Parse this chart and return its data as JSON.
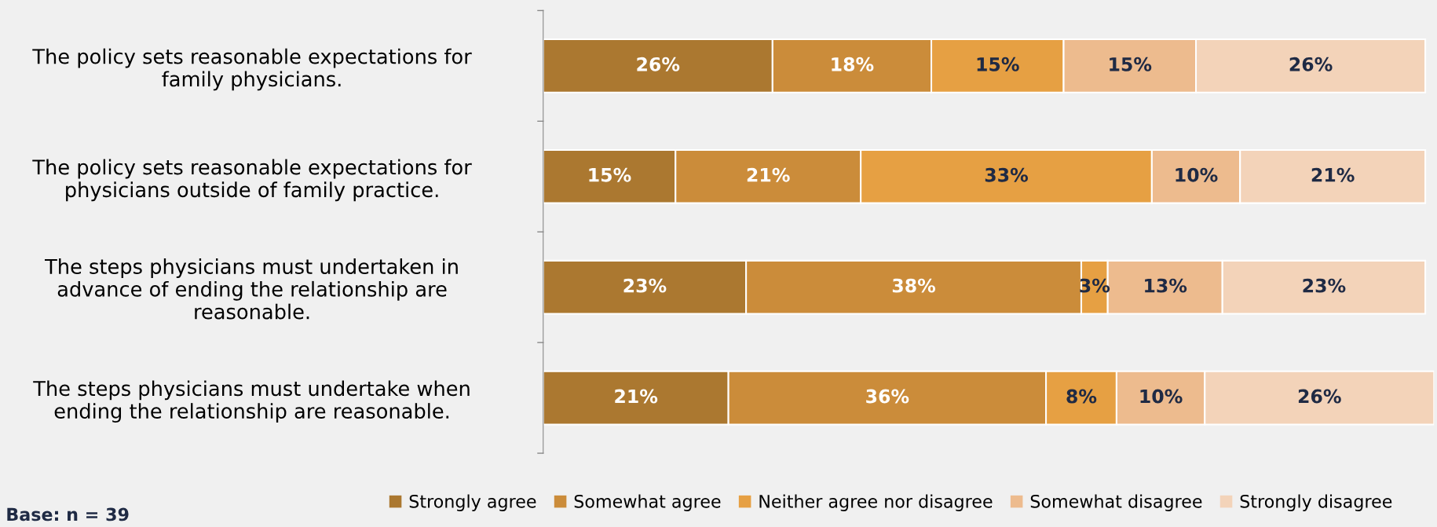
{
  "chart_data": {
    "type": "bar",
    "orientation": "horizontal",
    "stacked": true,
    "categories": [
      "The policy sets reasonable expectations for family physicians.",
      "The policy sets reasonable expectations for physicians outside of family practice.",
      "The steps physicians must undertaken in advance of ending the relationship are reasonable.",
      "The steps physicians must undertake when ending the relationship are reasonable."
    ],
    "series": [
      {
        "name": "Strongly agree",
        "color": "#ab7830",
        "values": [
          26,
          15,
          23,
          21
        ],
        "value_labels": [
          "26%",
          "15%",
          "23%",
          "21%"
        ]
      },
      {
        "name": "Somewhat agree",
        "color": "#cb8c3a",
        "values": [
          18,
          21,
          38,
          36
        ],
        "value_labels": [
          "18%",
          "21%",
          "38%",
          "36%"
        ]
      },
      {
        "name": "Neither agree nor disagree",
        "color": "#e6a043",
        "values": [
          15,
          33,
          3,
          8
        ],
        "value_labels": [
          "15%",
          "33%",
          "3%",
          "8%"
        ]
      },
      {
        "name": "Somewhat disagree",
        "color": "#edbb8e",
        "values": [
          15,
          10,
          13,
          10
        ],
        "value_labels": [
          "15%",
          "10%",
          "13%",
          "10%"
        ]
      },
      {
        "name": "Strongly disagree",
        "color": "#f3d3b9",
        "values": [
          26,
          21,
          23,
          26
        ],
        "value_labels": [
          "26%",
          "21%",
          "23%",
          "26%"
        ]
      }
    ],
    "xlim": [
      0,
      101
    ],
    "tick_labels": "y",
    "grid": false,
    "legend": "bottom",
    "annotations": [
      "Base: n = 39"
    ]
  }
}
